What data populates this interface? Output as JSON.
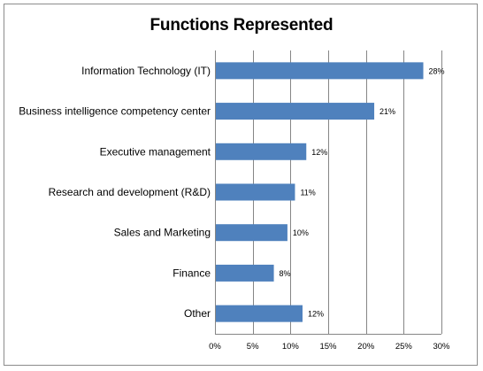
{
  "chart_data": {
    "type": "bar",
    "orientation": "horizontal",
    "title": "Functions Represented",
    "xlabel": "",
    "ylabel": "",
    "categories": [
      "Information Technology (IT)",
      "Business intelligence competency center",
      "Executive management",
      "Research and development (R&D)",
      "Sales and Marketing",
      "Finance",
      "Other"
    ],
    "values": [
      28,
      21,
      12,
      11,
      10,
      8,
      12
    ],
    "display_values": [
      27.6,
      21.1,
      12.1,
      10.6,
      9.6,
      7.8,
      11.6
    ],
    "data_labels": [
      "28%",
      "21%",
      "12%",
      "11%",
      "10%",
      "8%",
      "12%"
    ],
    "xlim": [
      0,
      30
    ],
    "x_ticks": [
      0,
      5,
      10,
      15,
      20,
      25,
      30
    ],
    "x_tick_labels": [
      "0%",
      "5%",
      "10%",
      "15%",
      "20%",
      "25%",
      "30%"
    ],
    "grid": "vertical",
    "legend": "none",
    "bar_color": "#4F81BD",
    "grid_color": "#868686"
  }
}
